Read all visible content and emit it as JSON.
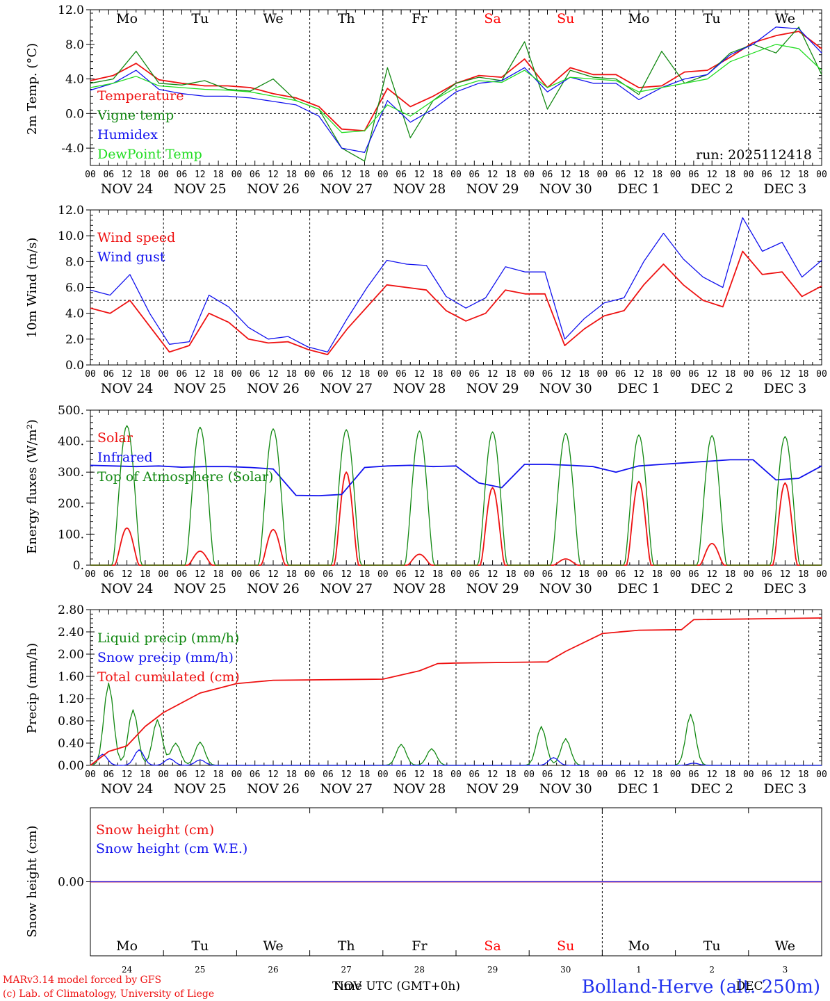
{
  "meta": {
    "run_label": "run: 2025112418",
    "model_line1": "MARv3.14 model forced by GFS",
    "model_line2": "(c) Lab. of Climatology, University of Liege",
    "xaxis_title": "Time UTC (GMT+0h)",
    "overlay_label": "NOV",
    "station": "Bolland-Herve (alt. 250m)",
    "overlay_label2": "DEC"
  },
  "days": {
    "weekdays": [
      "Mo",
      "Tu",
      "We",
      "Th",
      "Fr",
      "Sa",
      "Su",
      "Mo",
      "Tu",
      "We"
    ],
    "dates": [
      "NOV 24",
      "NOV 25",
      "NOV 26",
      "NOV 27",
      "NOV 28",
      "NOV 29",
      "NOV 30",
      "DEC  1",
      "DEC  2",
      "DEC  3"
    ],
    "day_numbers": [
      "24",
      "25",
      "26",
      "27",
      "28",
      "29",
      "30",
      "1",
      "2",
      "3"
    ],
    "hour_ticks": [
      "00",
      "06",
      "12",
      "18"
    ],
    "final_tick": "00",
    "weekend_color": "#ff0000"
  },
  "colors": {
    "red": "#ee1111",
    "green": "#118811",
    "blue": "#1111ee",
    "light_green": "#22dd22"
  },
  "chart_data": [
    {
      "type": "line",
      "id": "temperature",
      "ylabel": "2m Temp. (°C)",
      "ylim": [
        -6,
        12
      ],
      "yticks": [
        "-4.0",
        "0.0",
        "4.0",
        "8.0",
        "12.0"
      ],
      "ytick_values": [
        -4,
        0,
        4,
        8,
        12
      ],
      "hline": 0,
      "x_hours": [
        0,
        6,
        12,
        18,
        24,
        30,
        36,
        42,
        48,
        54,
        60,
        66,
        72,
        78,
        84,
        90,
        96,
        102,
        108,
        114,
        120,
        126,
        132,
        138,
        144,
        150,
        156,
        162,
        168,
        174,
        180,
        186,
        192,
        198,
        204,
        210,
        216,
        222,
        228,
        234,
        240
      ],
      "series": [
        {
          "name": "Temperature",
          "color_key": "red",
          "values": [
            3.8,
            4.4,
            5.8,
            3.9,
            3.5,
            3.2,
            3.2,
            3.0,
            2.3,
            1.8,
            0.8,
            -1.8,
            -2.0,
            2.9,
            0.8,
            2.0,
            3.5,
            4.4,
            4.2,
            6.3,
            3.0,
            5.3,
            4.5,
            4.5,
            3.0,
            3.2,
            4.8,
            5.0,
            6.5,
            8.2,
            9.0,
            9.5,
            7.5
          ]
        },
        {
          "name": "Vigne temp",
          "color_key": "green",
          "values": [
            3.5,
            4.0,
            7.2,
            3.5,
            3.3,
            3.8,
            2.8,
            2.6,
            4.0,
            1.5,
            0.5,
            -4.0,
            -5.5,
            5.3,
            -2.8,
            1.5,
            3.5,
            4.2,
            3.8,
            8.3,
            0.5,
            5.0,
            4.2,
            4.0,
            2.2,
            7.2,
            3.5,
            4.5,
            7.0,
            8.0,
            7.0,
            10.0,
            4.5
          ]
        },
        {
          "name": "Humidex",
          "color_key": "blue",
          "values": [
            2.7,
            3.5,
            5.0,
            2.8,
            2.3,
            2.0,
            2.0,
            1.8,
            1.4,
            1.0,
            -0.3,
            -4.0,
            -4.5,
            1.5,
            -1.0,
            0.5,
            2.5,
            3.5,
            3.8,
            5.3,
            2.5,
            4.2,
            3.5,
            3.5,
            1.6,
            3.0,
            4.0,
            4.5,
            6.8,
            8.0,
            10.0,
            9.8,
            7.0
          ]
        },
        {
          "name": "DewPoint Temp",
          "color_key": "light_green",
          "values": [
            3.0,
            3.5,
            4.3,
            3.2,
            3.0,
            2.8,
            2.7,
            2.5,
            2.0,
            1.5,
            0.5,
            -2.2,
            -2.0,
            1.0,
            -0.3,
            1.5,
            3.0,
            3.8,
            3.6,
            5.0,
            3.0,
            4.2,
            4.0,
            3.8,
            2.5,
            3.0,
            3.5,
            4.0,
            6.0,
            7.0,
            8.0,
            7.5,
            5.0
          ]
        }
      ]
    },
    {
      "type": "line",
      "id": "wind",
      "ylabel": "10m Wind (m/s)",
      "ylim": [
        0,
        12
      ],
      "yticks": [
        "0.0",
        "2.0",
        "4.0",
        "6.0",
        "8.0",
        "10.0",
        "12.0"
      ],
      "ytick_values": [
        0,
        2,
        4,
        6,
        8,
        10,
        12
      ],
      "hline": 5,
      "series": [
        {
          "name": "Wind speed",
          "color_key": "red",
          "values": [
            4.4,
            4.0,
            5.0,
            3.0,
            1.0,
            1.5,
            4.0,
            3.3,
            2.0,
            1.7,
            1.8,
            1.2,
            0.8,
            2.8,
            4.5,
            6.2,
            6.0,
            5.8,
            4.2,
            3.4,
            4.0,
            5.8,
            5.5,
            5.5,
            1.5,
            2.8,
            3.8,
            4.2,
            6.2,
            7.8,
            6.2,
            5.0,
            4.5,
            8.8,
            7.0,
            7.2,
            5.3,
            6.1
          ]
        },
        {
          "name": "Wind gust",
          "color_key": "blue",
          "values": [
            5.8,
            5.4,
            7.0,
            4.0,
            1.6,
            1.8,
            5.4,
            4.5,
            2.9,
            2.0,
            2.2,
            1.4,
            1.0,
            3.6,
            6.0,
            8.1,
            7.8,
            7.7,
            5.3,
            4.4,
            5.2,
            7.6,
            7.2,
            7.2,
            2.0,
            3.6,
            4.8,
            5.2,
            8.0,
            10.2,
            8.2,
            6.8,
            6.0,
            11.4,
            8.8,
            9.5,
            6.8,
            8.1
          ]
        }
      ]
    },
    {
      "type": "line",
      "id": "energy",
      "ylabel": "Energy fluxes (W/m²)",
      "ylim": [
        0,
        500
      ],
      "yticks": [
        "0.",
        "100.",
        "200.",
        "300.",
        "400.",
        "500."
      ],
      "ytick_values": [
        0,
        100,
        200,
        300,
        400,
        500
      ],
      "series": [
        {
          "name": "Solar",
          "color_key": "red",
          "noon_peaks": [
            120,
            45,
            115,
            300,
            35,
            250,
            20,
            270,
            70,
            265
          ]
        },
        {
          "name": "Infrared",
          "color_key": "blue",
          "values": [
            322,
            320,
            318,
            320,
            316,
            318,
            318,
            315,
            310,
            225,
            224,
            228,
            315,
            320,
            322,
            318,
            320,
            265,
            250,
            325,
            325,
            322,
            318,
            300,
            320,
            325,
            330,
            335,
            340,
            340,
            275,
            280,
            320
          ]
        },
        {
          "name": "Top of Atmosphere (Solar)",
          "color_key": "green",
          "noon_peaks": [
            450,
            445,
            440,
            437,
            433,
            430,
            425,
            420,
            418,
            415
          ]
        }
      ]
    },
    {
      "type": "line",
      "id": "precip",
      "ylabel": "Precip (mm/h)",
      "ylim": [
        0,
        2.8
      ],
      "yticks": [
        "0.00",
        "0.40",
        "0.80",
        "1.20",
        "1.60",
        "2.00",
        "2.40",
        "2.80"
      ],
      "ytick_values": [
        0,
        0.4,
        0.8,
        1.2,
        1.6,
        2.0,
        2.4,
        2.8
      ],
      "series": [
        {
          "name": "Liquid precip (mm/h)",
          "color_key": "green",
          "peaks": [
            [
              6,
              1.48
            ],
            [
              14,
              1.0
            ],
            [
              22,
              0.82
            ],
            [
              28,
              0.4
            ],
            [
              36,
              0.42
            ],
            [
              102,
              0.38
            ],
            [
              112,
              0.3
            ],
            [
              148,
              0.7
            ],
            [
              156,
              0.48
            ],
            [
              197,
              0.92
            ]
          ]
        },
        {
          "name": "Snow precip (mm/h)",
          "color_key": "blue",
          "peaks": [
            [
              4,
              0.2
            ],
            [
              16,
              0.28
            ],
            [
              26,
              0.12
            ],
            [
              36,
              0.1
            ],
            [
              152,
              0.14
            ],
            [
              198,
              0.04
            ]
          ]
        },
        {
          "name": "Total cumulated (cm)",
          "color_key": "red",
          "points": [
            [
              0,
              0
            ],
            [
              6,
              0.25
            ],
            [
              12,
              0.35
            ],
            [
              18,
              0.7
            ],
            [
              24,
              0.95
            ],
            [
              36,
              1.3
            ],
            [
              48,
              1.47
            ],
            [
              60,
              1.53
            ],
            [
              96,
              1.55
            ],
            [
              108,
              1.7
            ],
            [
              114,
              1.83
            ],
            [
              120,
              1.84
            ],
            [
              150,
              1.86
            ],
            [
              156,
              2.05
            ],
            [
              168,
              2.37
            ],
            [
              180,
              2.43
            ],
            [
              194,
              2.44
            ],
            [
              198,
              2.62
            ],
            [
              240,
              2.65
            ]
          ]
        }
      ]
    },
    {
      "type": "line",
      "id": "snow",
      "ylabel": "Snow height (cm)",
      "ylim": [
        -1,
        1
      ],
      "yticks": [
        "0.00"
      ],
      "ytick_values": [
        0
      ],
      "series": [
        {
          "name": "Snow height (cm)",
          "color_key": "red",
          "values": [
            0,
            0
          ]
        },
        {
          "name": "Snow height (cm W.E.)",
          "color_key": "blue",
          "values": [
            0,
            0
          ]
        }
      ]
    }
  ]
}
